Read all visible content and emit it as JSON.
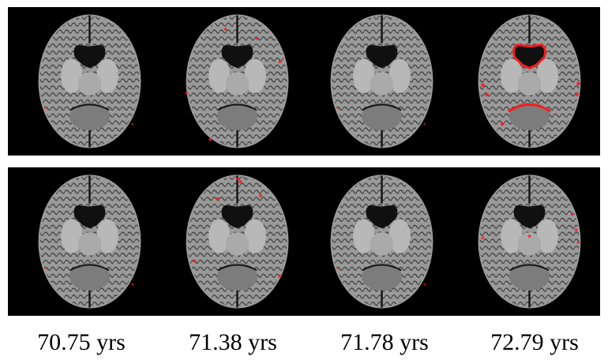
{
  "figure": {
    "labels": [
      "70.75 yrs",
      "71.38 yrs",
      "71.78 yrs",
      "72.79 yrs"
    ],
    "rows": [
      {
        "scans": [
          {
            "overlay": "minimal"
          },
          {
            "overlay": "scattered"
          },
          {
            "overlay": "minimal"
          },
          {
            "overlay": "ventricles"
          }
        ]
      },
      {
        "scans": [
          {
            "overlay": "minimal"
          },
          {
            "overlay": "frontal"
          },
          {
            "overlay": "minimal"
          },
          {
            "overlay": "lateral"
          }
        ]
      }
    ],
    "colors": {
      "background": "#000000",
      "overlay": "#ff1a1a",
      "tissue": "#9a9a9a"
    }
  }
}
